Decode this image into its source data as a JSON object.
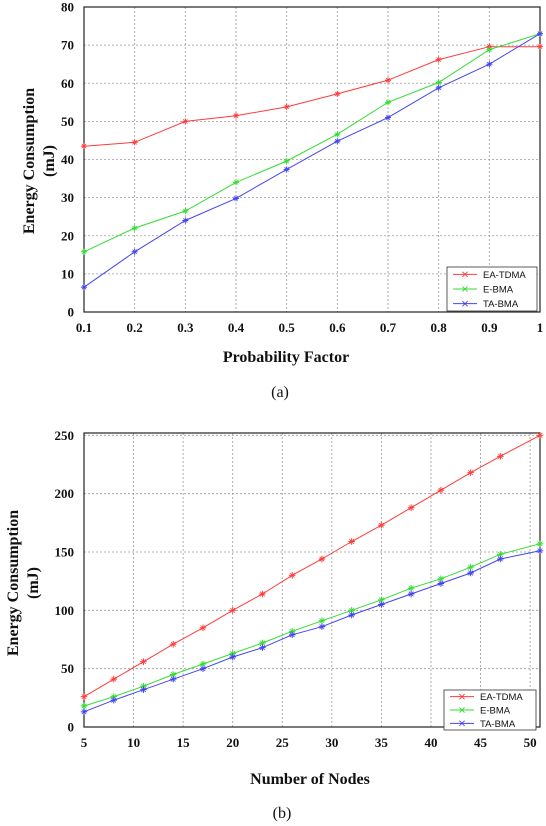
{
  "chart_data": [
    {
      "type": "line",
      "panel_label": "(a)",
      "xlabel": "Probability Factor",
      "ylabel_line1": "Energy Consumption",
      "ylabel_line2": "(mJ)",
      "xlim": [
        0.1,
        1.0
      ],
      "ylim": [
        0,
        80
      ],
      "xticks": [
        0.1,
        0.2,
        0.3,
        0.4,
        0.5,
        0.6,
        0.7,
        0.8,
        0.9,
        1
      ],
      "xtick_labels": [
        "0.1",
        "0.2",
        "0.3",
        "0.4",
        "0.5",
        "0.6",
        "0.7",
        "0.8",
        "0.9",
        "1"
      ],
      "yticks": [
        0,
        10,
        20,
        30,
        40,
        50,
        60,
        70,
        80
      ],
      "ytick_labels": [
        "0",
        "10",
        "20",
        "30",
        "40",
        "50",
        "60",
        "70",
        "80"
      ],
      "grid": true,
      "legend_position": "bottom-right",
      "x": [
        0.1,
        0.2,
        0.3,
        0.4,
        0.5,
        0.6,
        0.7,
        0.8,
        0.9,
        1.0
      ],
      "series": [
        {
          "name": "EA-TDMA",
          "color": "#ff3b3b",
          "values": [
            43.5,
            44.5,
            50,
            51.5,
            53.8,
            57.2,
            60.8,
            66.2,
            69.6,
            69.6
          ]
        },
        {
          "name": "E-BMA",
          "color": "#33dd33",
          "values": [
            15.8,
            22,
            26.5,
            34,
            39.6,
            46.6,
            55,
            60.2,
            68.8,
            73
          ]
        },
        {
          "name": "TA-BMA",
          "color": "#4444ee",
          "values": [
            6.5,
            15.8,
            24,
            29.8,
            37.4,
            44.8,
            51,
            58.8,
            65,
            73
          ]
        }
      ]
    },
    {
      "type": "line",
      "panel_label": "(b)",
      "xlabel": "Number of Nodes",
      "ylabel_line1": "Energy Consumption",
      "ylabel_line2": "(mJ)",
      "xlim": [
        5,
        51
      ],
      "ylim": [
        0,
        252
      ],
      "xticks": [
        5,
        10,
        15,
        20,
        25,
        30,
        35,
        40,
        45,
        50
      ],
      "xtick_labels": [
        "5",
        "10",
        "15",
        "20",
        "25",
        "30",
        "35",
        "40",
        "45",
        "50"
      ],
      "yticks": [
        0,
        50,
        100,
        150,
        200,
        250
      ],
      "ytick_labels": [
        "0",
        "50",
        "100",
        "150",
        "200",
        "250"
      ],
      "grid": true,
      "legend_position": "bottom-right",
      "x": [
        5,
        8,
        11,
        14,
        17,
        20,
        23,
        26,
        29,
        32,
        35,
        38,
        41,
        44,
        47,
        51
      ],
      "series": [
        {
          "name": "EA-TDMA",
          "color": "#ff3b3b",
          "values": [
            26,
            41,
            56,
            71,
            85,
            100,
            114,
            130,
            144,
            159,
            173,
            188,
            203,
            218,
            232,
            250
          ]
        },
        {
          "name": "E-BMA",
          "color": "#33dd33",
          "values": [
            18,
            26,
            35,
            45,
            54,
            63,
            72,
            82,
            91,
            100,
            109,
            119,
            127,
            137,
            148,
            157
          ]
        },
        {
          "name": "TA-BMA",
          "color": "#4444ee",
          "values": [
            13,
            23,
            32,
            41,
            50,
            60,
            68,
            79,
            86,
            96,
            105,
            114,
            123,
            132,
            144,
            151
          ]
        }
      ]
    }
  ]
}
